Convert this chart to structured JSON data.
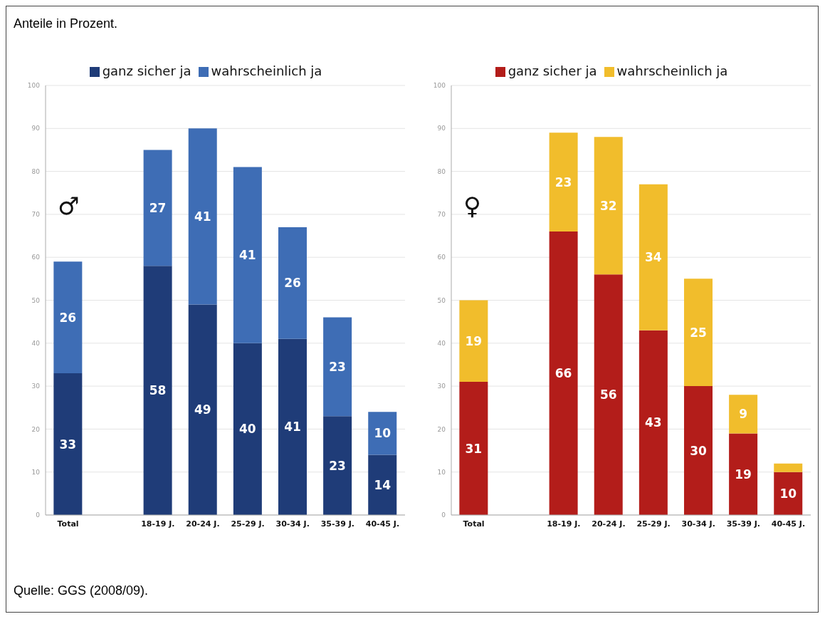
{
  "chart_data": [
    {
      "type": "bar",
      "title": "Anteile in Prozent.",
      "stacked": true,
      "categories": [
        "Total",
        null,
        "18-19 J.",
        "20-24 J.",
        "25-29 J.",
        "30-34 J.",
        "35-39 J.",
        "40-45 J."
      ],
      "series": [
        {
          "name": "ganz sicher ja",
          "color": "#1f3c78",
          "values": [
            33,
            null,
            58,
            49,
            40,
            41,
            23,
            14
          ],
          "value_labels": [
            "33",
            null,
            "58",
            "49",
            "40",
            "41",
            "23",
            "14"
          ]
        },
        {
          "name": "wahrscheinlich ja",
          "color": "#3e6db5",
          "values": [
            26,
            null,
            27,
            41,
            41,
            26,
            23,
            10
          ],
          "value_labels": [
            "26",
            null,
            "27",
            "41",
            "41",
            "26",
            "23",
            "10"
          ]
        }
      ],
      "ylim": [
        0,
        100
      ],
      "yticks": [
        0,
        10,
        20,
        30,
        40,
        50,
        60,
        70,
        80,
        90,
        100
      ],
      "grid": "y",
      "legend": "top",
      "annotations": [
        "♂",
        "Quelle: GGS (2008/09)."
      ]
    },
    {
      "type": "bar",
      "stacked": true,
      "categories": [
        "Total",
        null,
        "18-19 J.",
        "20-24 J.",
        "25-29 J.",
        "30-34 J.",
        "35-39 J.",
        "40-45 J."
      ],
      "series": [
        {
          "name": "ganz sicher ja",
          "color": "#b31d1a",
          "values": [
            31,
            null,
            66,
            56,
            43,
            30,
            19,
            10
          ],
          "value_labels": [
            "31",
            null,
            "66",
            "56",
            "43",
            "30",
            "19",
            "10"
          ]
        },
        {
          "name": "wahrscheinlich ja",
          "color": "#f1bd2c",
          "values": [
            19,
            null,
            23,
            32,
            34,
            25,
            9,
            2
          ],
          "value_labels": [
            "19",
            null,
            "23",
            "32",
            "34",
            "25",
            "9",
            null
          ]
        }
      ],
      "ylim": [
        0,
        100
      ],
      "yticks": [
        0,
        10,
        20,
        30,
        40,
        50,
        60,
        70,
        80,
        90,
        100
      ],
      "grid": "y",
      "legend": "top",
      "annotations": [
        "♀"
      ]
    }
  ]
}
